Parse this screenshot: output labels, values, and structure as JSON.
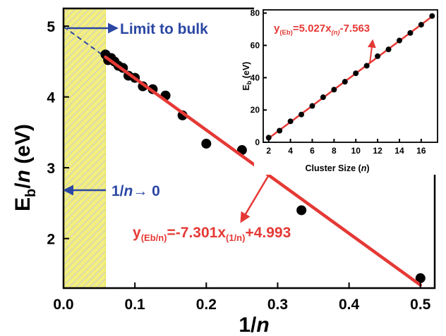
{
  "chart_data": [
    {
      "type": "scatter",
      "title": "",
      "xlabel": "1/n",
      "ylabel": "Eb/n (eV)",
      "xlim": [
        0,
        0.52
      ],
      "ylim": [
        1.3,
        5.25
      ],
      "x_ticks": [
        "0.0",
        "0.1",
        "0.2",
        "0.3",
        "0.4",
        "0.5"
      ],
      "y_ticks": [
        "2",
        "3",
        "4",
        "5"
      ],
      "grid": false,
      "series": [
        {
          "marker": "circle",
          "color": "#000000",
          "points": [
            {
              "x": 0.0588,
              "y": 4.6
            },
            {
              "x": 0.0625,
              "y": 4.52
            },
            {
              "x": 0.0667,
              "y": 4.55
            },
            {
              "x": 0.0714,
              "y": 4.5
            },
            {
              "x": 0.0769,
              "y": 4.44
            },
            {
              "x": 0.0833,
              "y": 4.41
            },
            {
              "x": 0.0909,
              "y": 4.3
            },
            {
              "x": 0.1,
              "y": 4.27
            },
            {
              "x": 0.1111,
              "y": 4.15
            },
            {
              "x": 0.125,
              "y": 4.11
            },
            {
              "x": 0.1429,
              "y": 4.02
            },
            {
              "x": 0.1667,
              "y": 3.74
            },
            {
              "x": 0.2,
              "y": 3.34
            },
            {
              "x": 0.25,
              "y": 3.25
            },
            {
              "x": 0.3333,
              "y": 2.4
            },
            {
              "x": 0.5,
              "y": 1.44
            }
          ]
        }
      ],
      "fit": {
        "slope": -7.301,
        "intercept": 4.993,
        "color": "#e53935",
        "x_range": [
          0.0588,
          0.5
        ],
        "extrapolated_range": [
          0,
          0.0588
        ]
      },
      "highlight_region": {
        "x_range": [
          0,
          0.0588
        ],
        "color": "#f2ee7f"
      },
      "annotations": {
        "limit_to_bulk": "Limit to bulk",
        "n_limit_prefix": "1/",
        "n_limit_italic": "n",
        "n_limit_suffix": "→ 0",
        "equation": {
          "prefix": "y",
          "sub1": "(Eb/n)",
          "mid": "=-7.301x",
          "sub2": "(1/n)",
          "suffix": "+4.993"
        }
      }
    },
    {
      "type": "scatter",
      "title": "",
      "xlabel": "Cluster Size (n)",
      "ylabel": "Eb (eV)",
      "xlim": [
        1.5,
        17.5
      ],
      "ylim": [
        0,
        82
      ],
      "x_ticks": [
        "2",
        "4",
        "6",
        "8",
        "10",
        "12",
        "14",
        "16"
      ],
      "y_ticks": [
        "0",
        "20",
        "40",
        "60",
        "80"
      ],
      "grid": false,
      "series": [
        {
          "marker": "circle",
          "color": "#000000",
          "points": [
            {
              "x": 2,
              "y": 2.88
            },
            {
              "x": 3,
              "y": 7.2
            },
            {
              "x": 4,
              "y": 13.0
            },
            {
              "x": 5,
              "y": 17.2
            },
            {
              "x": 6,
              "y": 22.5
            },
            {
              "x": 7,
              "y": 27.9
            },
            {
              "x": 8,
              "y": 32.6
            },
            {
              "x": 9,
              "y": 37.5
            },
            {
              "x": 10,
              "y": 42.7
            },
            {
              "x": 11,
              "y": 47.4
            },
            {
              "x": 12,
              "y": 53.3
            },
            {
              "x": 13,
              "y": 57.5
            },
            {
              "x": 14,
              "y": 63.0
            },
            {
              "x": 15,
              "y": 67.7
            },
            {
              "x": 16,
              "y": 72.8
            },
            {
              "x": 17,
              "y": 78.2
            }
          ]
        }
      ],
      "fit": {
        "slope": 5.027,
        "intercept": -7.563,
        "color": "#e53935",
        "x_range": [
          2,
          17
        ]
      },
      "annotations": {
        "equation": {
          "prefix": "y",
          "sub1": "(Eb)",
          "mid": "=5.027x",
          "sub2": "(n)",
          "suffix": "-7.563"
        }
      }
    }
  ]
}
